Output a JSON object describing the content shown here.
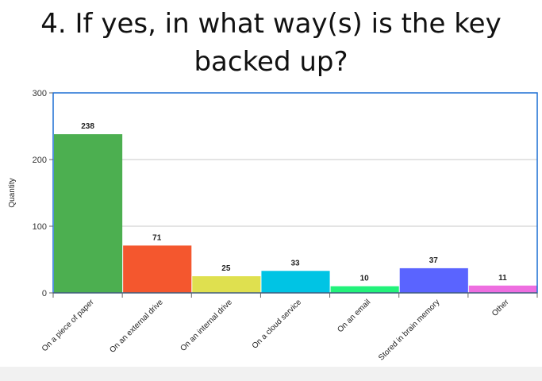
{
  "chart_data": {
    "type": "bar",
    "title": "4. If yes, in what way(s) is the key backed up?",
    "ylabel": "Quantity",
    "xlabel": "",
    "ylim": [
      0,
      300
    ],
    "yticks": [
      0,
      100,
      200,
      300
    ],
    "grid": true,
    "categories": [
      "On a piece of paper",
      "On an external drive",
      "On an internal drive",
      "On a cloud service",
      "On an email",
      "Stored in brain memory",
      "Other"
    ],
    "values": [
      238,
      71,
      25,
      33,
      10,
      37,
      11
    ],
    "colors": [
      "#4caf50",
      "#f4572e",
      "#dfe04f",
      "#00c4e4",
      "#22f27a",
      "#5a64ff",
      "#ee6ee0"
    ],
    "frame_color": "#1c6fd3"
  }
}
